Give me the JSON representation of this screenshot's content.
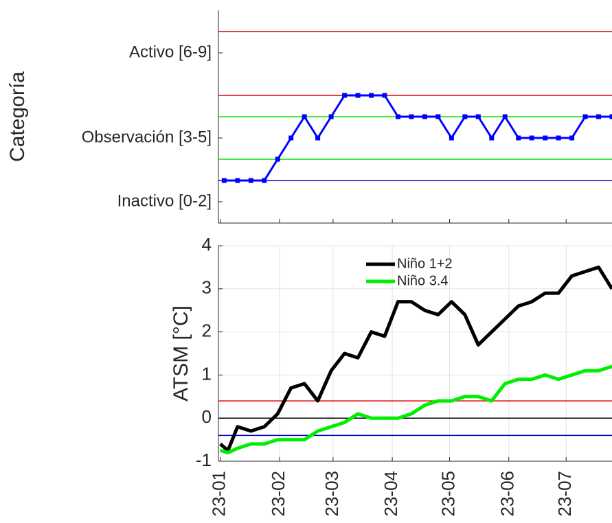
{
  "chart_data": [
    {
      "type": "line",
      "ylabel": "Categoría",
      "x": [
        2,
        9,
        16,
        23,
        30,
        37,
        44,
        51,
        58,
        65,
        72,
        79,
        86,
        93,
        100,
        107,
        114,
        121,
        128,
        135,
        142,
        149,
        156,
        163,
        170,
        177,
        184,
        191,
        198,
        205
      ],
      "series": [
        {
          "color": "#0000ff",
          "values": [
            2,
            2,
            2,
            2,
            3,
            4,
            5,
            4,
            5,
            6,
            6,
            6,
            6,
            5,
            5,
            5,
            5,
            4,
            5,
            5,
            4,
            5,
            4,
            4,
            4,
            4,
            4,
            5,
            5,
            5
          ]
        }
      ],
      "xlim": [
        -1,
        205
      ],
      "xticks": [
        0,
        31,
        59,
        90,
        120,
        151,
        181
      ],
      "ylim": [
        0,
        10
      ],
      "yticks": [
        {
          "value": 1,
          "label": "Inactivo [0-2]"
        },
        {
          "value": 4,
          "label": "Observación [3-5]"
        },
        {
          "value": 8,
          "label": "Activo [6-9]"
        }
      ],
      "hlines": [
        {
          "value": 2,
          "color": "#0000cc"
        },
        {
          "value": 3,
          "color": "#00e000"
        },
        {
          "value": 5,
          "color": "#00e000"
        },
        {
          "value": 6,
          "color": "#e00000"
        },
        {
          "value": 9,
          "color": "#e00000"
        }
      ],
      "grid": false
    },
    {
      "type": "line",
      "ylabel": "ATSM [°C]",
      "x": [
        0,
        4,
        9,
        16,
        23,
        30,
        37,
        44,
        51,
        58,
        65,
        72,
        79,
        86,
        93,
        100,
        107,
        114,
        121,
        128,
        135,
        142,
        149,
        156,
        163,
        170,
        177,
        184,
        191,
        198,
        205
      ],
      "series": [
        {
          "name": "Niño 1+2",
          "color": "#000000",
          "values": [
            -0.6,
            -0.75,
            -0.2,
            -0.3,
            -0.2,
            0.1,
            0.7,
            0.8,
            0.4,
            1.1,
            1.5,
            1.4,
            2.0,
            1.9,
            2.7,
            2.7,
            2.5,
            2.4,
            2.7,
            2.4,
            1.7,
            2.0,
            2.3,
            2.6,
            2.7,
            2.9,
            2.9,
            3.3,
            3.4,
            3.5,
            3.0
          ]
        },
        {
          "name": "Niño 3.4",
          "color": "#00ee00",
          "values": [
            -0.75,
            -0.8,
            -0.7,
            -0.6,
            -0.6,
            -0.5,
            -0.5,
            -0.5,
            -0.3,
            -0.2,
            -0.1,
            0.1,
            0,
            0,
            0,
            0.1,
            0.3,
            0.4,
            0.4,
            0.5,
            0.5,
            0.4,
            0.8,
            0.9,
            0.9,
            1.0,
            0.9,
            1.0,
            1.1,
            1.1,
            1.2
          ]
        }
      ],
      "xlim": [
        -1,
        205
      ],
      "xticks": [
        {
          "value": 0,
          "label": "23-01"
        },
        {
          "value": 31,
          "label": "23-02"
        },
        {
          "value": 59,
          "label": "23-03"
        },
        {
          "value": 90,
          "label": "23-04"
        },
        {
          "value": 120,
          "label": "23-05"
        },
        {
          "value": 151,
          "label": "23-06"
        },
        {
          "value": 181,
          "label": "23-07"
        }
      ],
      "ylim": [
        -1,
        4
      ],
      "yticks": [
        -1,
        0,
        1,
        2,
        3,
        4
      ],
      "hlines": [
        {
          "value": 0.4,
          "color": "#e00000"
        },
        {
          "value": -0.4,
          "color": "#0000cc"
        },
        {
          "value": 0,
          "color": "#000000"
        }
      ],
      "grid": true,
      "legend": "top"
    }
  ]
}
